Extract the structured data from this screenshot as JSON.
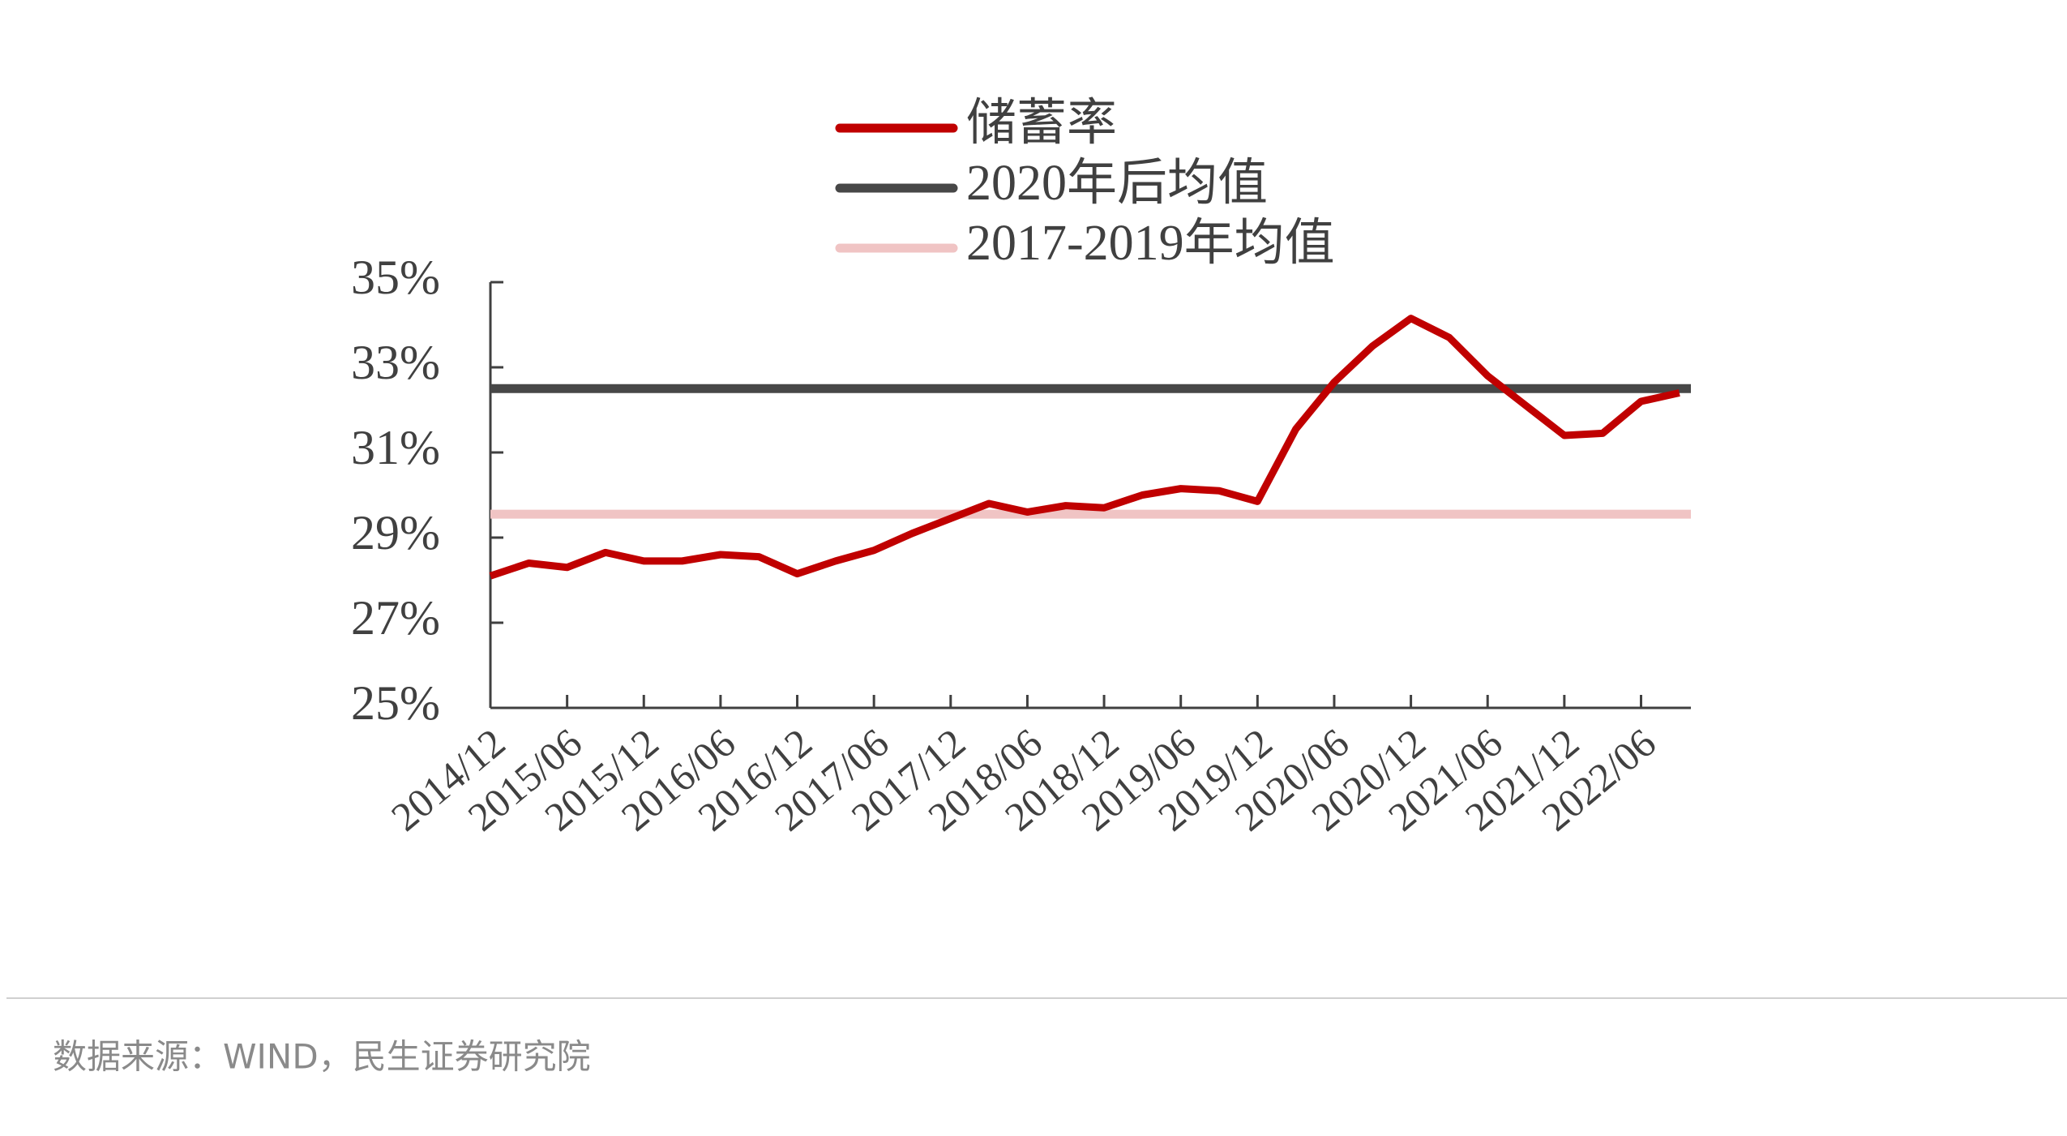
{
  "chart_data": {
    "type": "line",
    "categories": [
      "2014/12",
      null,
      "2015/06",
      null,
      "2015/12",
      null,
      "2016/06",
      null,
      "2016/12",
      null,
      "2017/06",
      null,
      "2017/12",
      null,
      "2018/06",
      null,
      "2018/12",
      null,
      "2019/06",
      null,
      "2019/12",
      null,
      "2020/06",
      null,
      "2020/12",
      null,
      "2021/06",
      null,
      "2021/12",
      null,
      "2022/06",
      null
    ],
    "series": [
      {
        "name": "储蓄率",
        "color": "#c00000",
        "values": [
          28.1,
          28.4,
          28.3,
          28.65,
          28.45,
          28.45,
          28.6,
          28.55,
          28.15,
          28.45,
          28.7,
          29.1,
          29.45,
          29.8,
          29.6,
          29.75,
          29.7,
          30.0,
          30.15,
          30.1,
          29.85,
          31.55,
          32.65,
          33.5,
          34.15,
          33.7,
          32.8,
          32.1,
          31.4,
          31.45,
          32.2,
          32.4
        ]
      }
    ],
    "reference_lines": [
      {
        "name": "2020年后均值",
        "color": "#474747",
        "value": 32.5
      },
      {
        "name": "2017-2019年均值",
        "color": "#f0c4c4",
        "value": 29.55
      }
    ],
    "ylim": [
      25,
      35
    ],
    "yticks": [
      {
        "value": 25,
        "label": "25%"
      },
      {
        "value": 27,
        "label": "27%"
      },
      {
        "value": 29,
        "label": "29%"
      },
      {
        "value": 31,
        "label": "31%"
      },
      {
        "value": 33,
        "label": "33%"
      },
      {
        "value": 35,
        "label": "35%"
      }
    ],
    "legend": "top",
    "source": "数据来源：WIND，民生证券研究院"
  }
}
